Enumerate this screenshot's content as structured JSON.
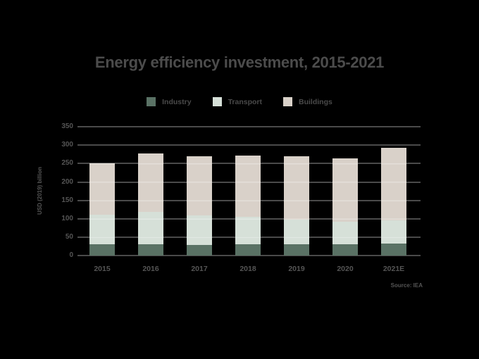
{
  "title": "Energy efficiency investment, 2015-2021",
  "source": "Source: IEA",
  "chart_data": {
    "type": "bar",
    "stacked": true,
    "title": "Energy efficiency investment, 2015-2021",
    "categories": [
      "2015",
      "2016",
      "2017",
      "2018",
      "2019",
      "2020",
      "2021E"
    ],
    "series": [
      {
        "name": "Industry",
        "color": "#5a7265",
        "values": [
          32,
          31,
          30,
          32,
          32,
          32,
          33
        ]
      },
      {
        "name": "Transport",
        "color": "#d6e0d8",
        "values": [
          79,
          88,
          79,
          74,
          66,
          61,
          63
        ]
      },
      {
        "name": "Buildings",
        "color": "#d9d1c9",
        "values": [
          139,
          159,
          161,
          166,
          171,
          172,
          197
        ]
      }
    ],
    "totals": [
      250,
      278,
      270,
      272,
      269,
      265,
      293
    ],
    "xlabel": "",
    "ylabel": "USD (2019) billion",
    "ylim": [
      0,
      350
    ],
    "ytick_step": 50,
    "yticks": [
      "0",
      "50",
      "100",
      "150",
      "200",
      "250",
      "300",
      "350"
    ],
    "grid": true,
    "legend_position": "top",
    "colors": {
      "background": "#000000",
      "gridline": "#4a4a4a",
      "title_text": "#4c4c4c",
      "axis_text": "#555555"
    }
  }
}
